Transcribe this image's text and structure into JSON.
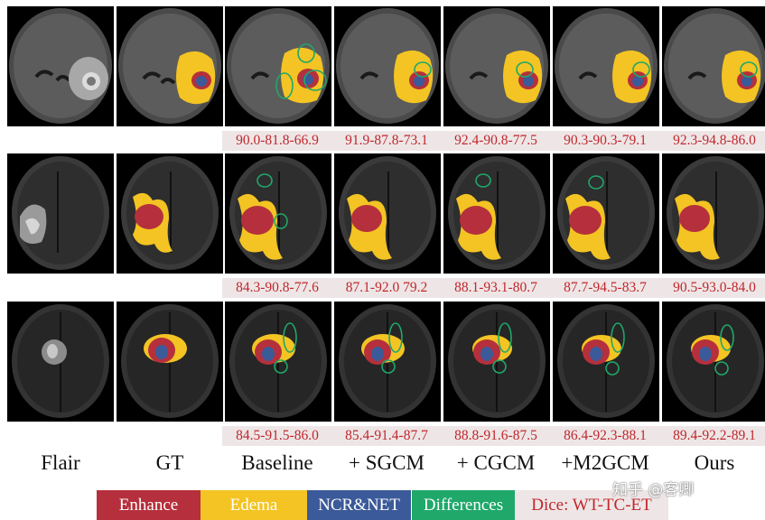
{
  "columns": [
    "Flair",
    "GT",
    "Baseline",
    "+ SGCM",
    "+ CGCM",
    "+M2GCM",
    "Ours"
  ],
  "dice_rows": [
    [
      "90.0-81.8-66.9",
      "91.9-87.8-73.1",
      "92.4-90.8-77.5",
      "90.3-90.3-79.1",
      "92.3-94.8-86.0"
    ],
    [
      "84.3-90.8-77.6",
      "87.1-92.0 79.2",
      "88.1-93.1-80.7",
      "87.7-94.5-83.7",
      "90.5-93.0-84.0"
    ],
    [
      "84.5-91.5-86.0",
      "85.4-91.4-87.7",
      "88.8-91.6-87.5",
      "86.4-92.3-88.1",
      "89.4-92.2-89.1"
    ]
  ],
  "legend": {
    "enhance": "Enhance",
    "edema": "Edema",
    "ncr": "NCR&NET",
    "differences": "Differences",
    "dice": "Dice: WT-TC-ET"
  },
  "colors": {
    "enhance": "#b5303c",
    "edema": "#f3c423",
    "ncr": "#3b5a99",
    "differences": "#1fa86a",
    "dice_bg": "#eee6e6",
    "dice_text": "#c0272d"
  },
  "watermark": "知乎 @客卿"
}
